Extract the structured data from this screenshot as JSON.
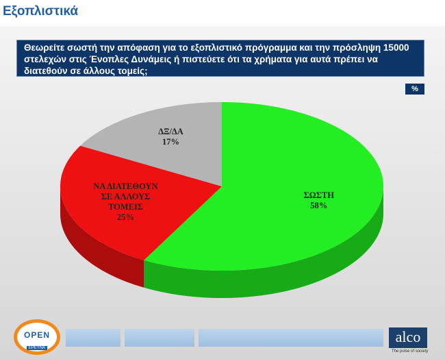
{
  "heading": "Εξοπλιστικά",
  "chart_data": {
    "type": "pie",
    "title": "Θεωρείτε σωστή την απόφαση για το εξοπλιστικό πρόγραμμα και την πρόσληψη 15000  στελεχών στις Ένοπλες Δυνάμεις  ή  πιστεύετε ότι τα χρήματα για αυτά πρέπει να διατεθούν σε άλλους τομείς;",
    "unit_label": "%",
    "categories": [
      "ΣΩΣΤΗ",
      "ΝΑ ΔΙΑΤΕΘΟΥΝ ΣΕ ΑΛΛΟΥΣ ΤΟΜΕΙΣ",
      "ΔΞ/ΔΑ"
    ],
    "values": [
      58,
      25,
      17
    ],
    "value_labels": [
      "58%",
      "25%",
      "17%"
    ],
    "colors": [
      "#22ee22",
      "#ee1111",
      "#b4b4b4"
    ]
  },
  "footer": {
    "logo_main": "OPEN",
    "logo_sub": "ΕΡΕΥΝΑ",
    "brand": "alco",
    "tagline": "The pulse of society"
  }
}
